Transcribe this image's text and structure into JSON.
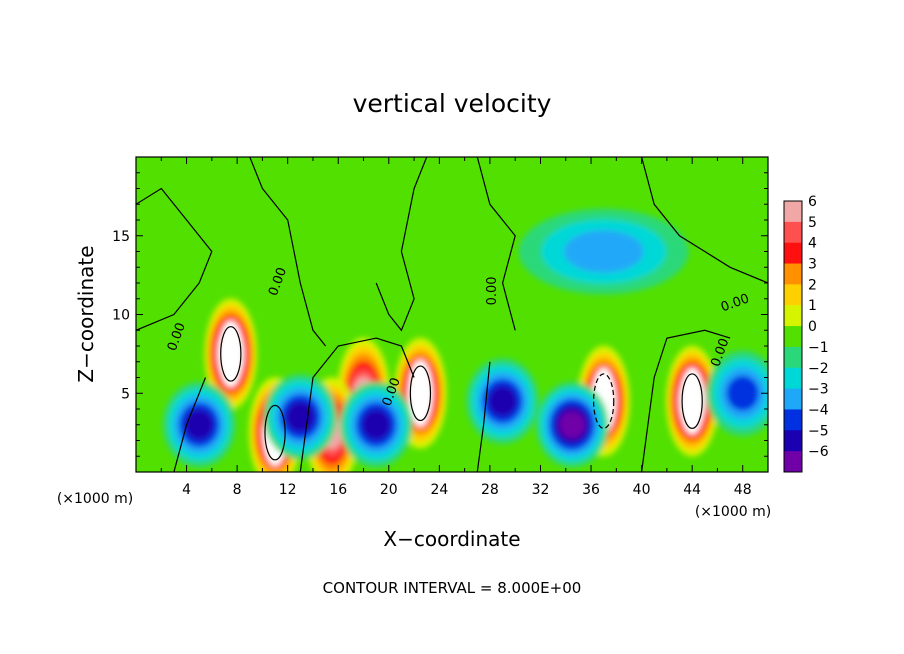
{
  "chart_data": {
    "type": "heatmap",
    "title": "vertical velocity",
    "xlabel": "X−coordinate",
    "ylabel": "Z−coordinate",
    "x_unit_label": "(×1000 m)",
    "y_unit_label": "(×1000 m)",
    "xlim": [
      0,
      50
    ],
    "ylim": [
      0,
      20
    ],
    "x_ticks": [
      "4",
      "8",
      "12",
      "16",
      "20",
      "24",
      "28",
      "32",
      "36",
      "40",
      "44",
      "48"
    ],
    "y_ticks": [
      "5",
      "10",
      "15"
    ],
    "colorbar": {
      "range": [
        -6,
        6
      ],
      "labels": [
        "6",
        "5",
        "4",
        "3",
        "2",
        "1",
        "0",
        "−1",
        "−2",
        "−3",
        "−4",
        "−5",
        "−6"
      ],
      "colors": [
        "#f2a7a7",
        "#ff5050",
        "#ff1010",
        "#ff9000",
        "#ffd000",
        "#d6f400",
        "#52e000",
        "#2ad87a",
        "#00d8d8",
        "#20a8f8",
        "#0030e0",
        "#1a00b0",
        "#7000a8"
      ]
    },
    "contour_label": "0.00",
    "features": [
      {
        "sign": "+",
        "x": 7.5,
        "z": 7.5,
        "peak": 8
      },
      {
        "sign": "+",
        "x": 22.5,
        "z": 5.0,
        "peak": 7
      },
      {
        "sign": "+",
        "x": 18.0,
        "z": 5.0,
        "peak": 6
      },
      {
        "sign": "+",
        "x": 15.5,
        "z": 2.5,
        "peak": 6
      },
      {
        "sign": "+",
        "x": 37.0,
        "z": 4.5,
        "peak": 7
      },
      {
        "sign": "+",
        "x": 44.0,
        "z": 4.5,
        "peak": 8
      },
      {
        "sign": "+",
        "x": 11.0,
        "z": 2.5,
        "peak": 7
      },
      {
        "sign": "-",
        "x": 13.0,
        "z": 3.5,
        "peak": -5
      },
      {
        "sign": "-",
        "x": 19.0,
        "z": 3.0,
        "peak": -5
      },
      {
        "sign": "-",
        "x": 29.0,
        "z": 4.5,
        "peak": -5
      },
      {
        "sign": "-",
        "x": 34.5,
        "z": 3.0,
        "peak": -6
      },
      {
        "sign": "-",
        "x": 5.0,
        "z": 3.0,
        "peak": -5
      },
      {
        "sign": "-",
        "x": 37.0,
        "z": 14.0,
        "peak": -3
      },
      {
        "sign": "-",
        "x": 48.0,
        "z": 5.0,
        "peak": -4
      }
    ]
  },
  "footer": {
    "contour_interval": "CONTOUR INTERVAL = 8.000E+00"
  }
}
